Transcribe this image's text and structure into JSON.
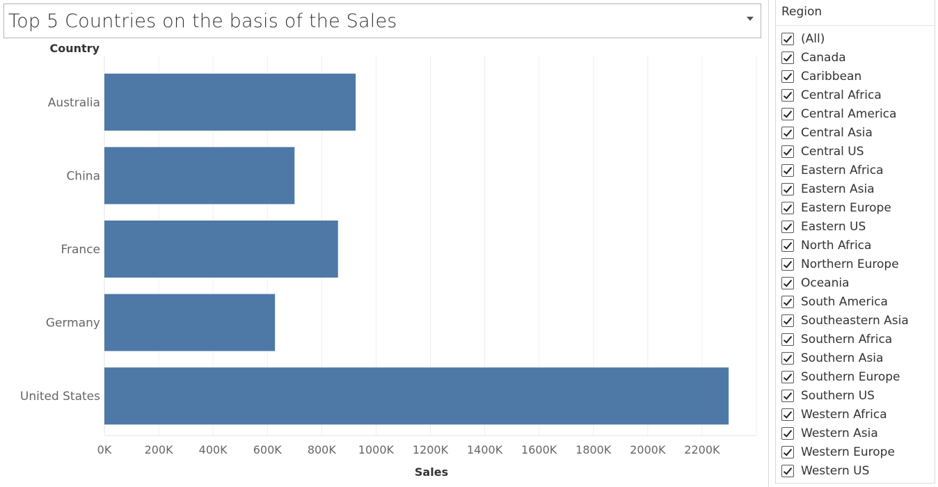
{
  "title": {
    "text": "Top 5 Countries on the basis of the Sales"
  },
  "filter": {
    "header": "Region",
    "items": [
      {
        "label": "(All)",
        "checked": true
      },
      {
        "label": "Canada",
        "checked": true
      },
      {
        "label": "Caribbean",
        "checked": true
      },
      {
        "label": "Central Africa",
        "checked": true
      },
      {
        "label": "Central America",
        "checked": true
      },
      {
        "label": "Central Asia",
        "checked": true
      },
      {
        "label": "Central US",
        "checked": true
      },
      {
        "label": "Eastern Africa",
        "checked": true
      },
      {
        "label": "Eastern Asia",
        "checked": true
      },
      {
        "label": "Eastern Europe",
        "checked": true
      },
      {
        "label": "Eastern US",
        "checked": true
      },
      {
        "label": "North Africa",
        "checked": true
      },
      {
        "label": "Northern Europe",
        "checked": true
      },
      {
        "label": "Oceania",
        "checked": true
      },
      {
        "label": "South America",
        "checked": true
      },
      {
        "label": "Southeastern Asia",
        "checked": true
      },
      {
        "label": "Southern Africa",
        "checked": true
      },
      {
        "label": "Southern Asia",
        "checked": true
      },
      {
        "label": "Southern Europe",
        "checked": true
      },
      {
        "label": "Southern US",
        "checked": true
      },
      {
        "label": "Western Africa",
        "checked": true
      },
      {
        "label": "Western Asia",
        "checked": true
      },
      {
        "label": "Western Europe",
        "checked": true
      },
      {
        "label": "Western US",
        "checked": true
      }
    ]
  },
  "chart_data": {
    "type": "bar",
    "orientation": "horizontal",
    "categories": [
      "Australia",
      "China",
      "France",
      "Germany",
      "United States"
    ],
    "values": [
      925000,
      700000,
      860000,
      628000,
      2298000
    ],
    "xlabel": "Sales",
    "ylabel": "Country",
    "xlim": [
      0,
      2400000
    ],
    "xticks": [
      0,
      200000,
      400000,
      600000,
      800000,
      1000000,
      1200000,
      1400000,
      1600000,
      1800000,
      2000000,
      2200000
    ],
    "xtick_labels": [
      "0K",
      "200K",
      "400K",
      "600K",
      "800K",
      "1000K",
      "1200K",
      "1400K",
      "1600K",
      "1800K",
      "2000K",
      "2200K"
    ],
    "bar_color": "#4e79a7",
    "grid": true
  }
}
